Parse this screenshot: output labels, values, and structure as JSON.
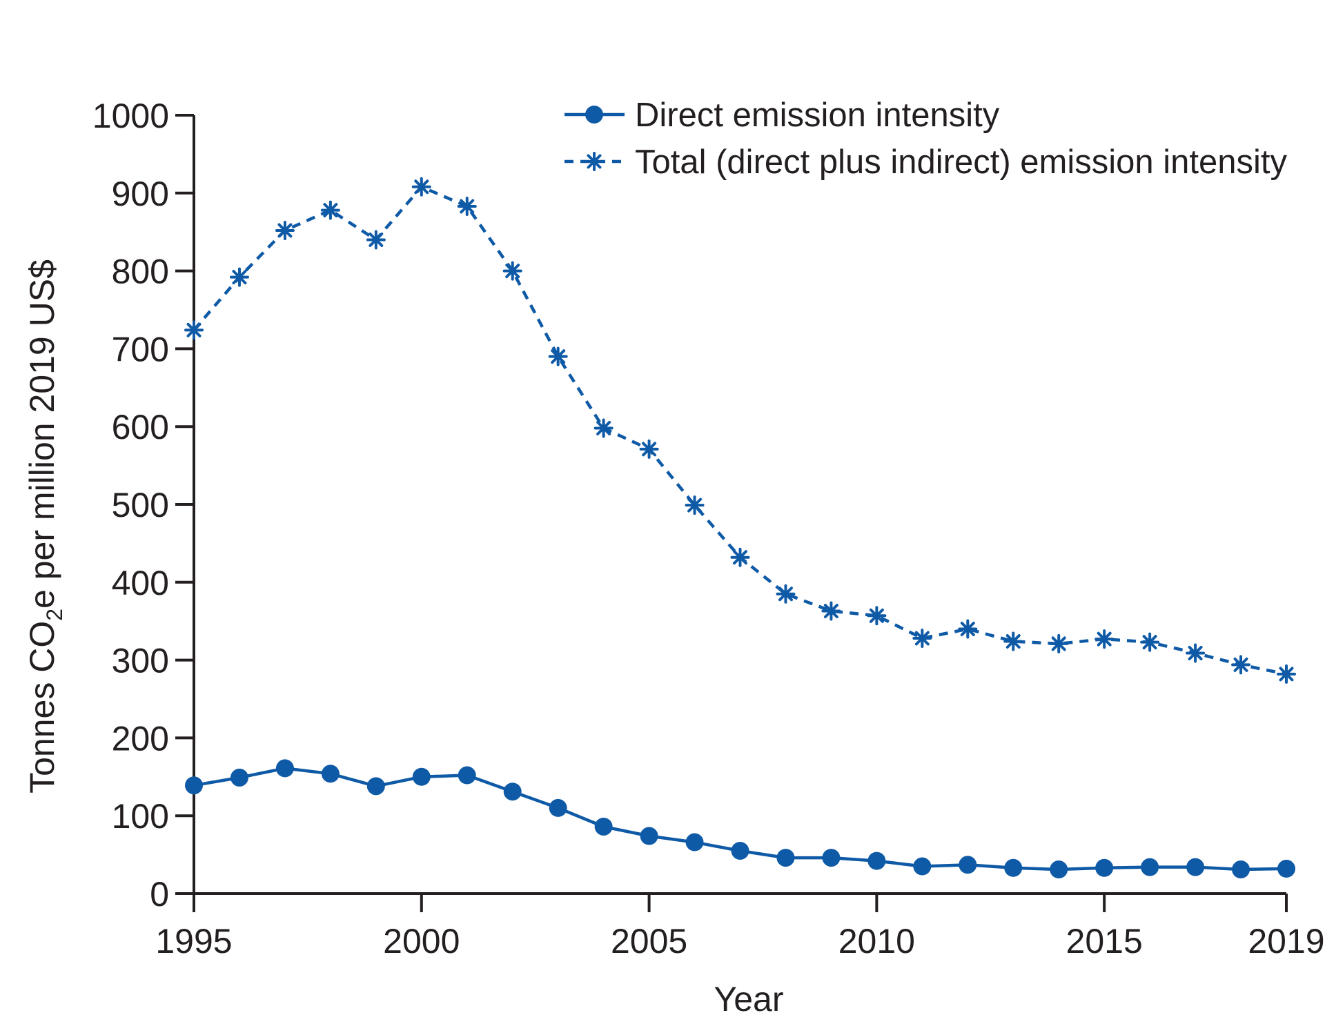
{
  "chart_data": {
    "type": "line",
    "title": "",
    "xlabel": "Year",
    "ylabel_parts": {
      "before": "Tonnes CO",
      "subscript": "2",
      "after": "e per million 2019 US$"
    },
    "xlim": [
      1995,
      2019
    ],
    "ylim": [
      0,
      1000
    ],
    "x_ticks": [
      1995,
      2000,
      2005,
      2010,
      2015,
      2019
    ],
    "y_ticks": [
      0,
      100,
      200,
      300,
      400,
      500,
      600,
      700,
      800,
      900,
      1000
    ],
    "grid": false,
    "legend_position": "top-right",
    "x": [
      1995,
      1996,
      1997,
      1998,
      1999,
      2000,
      2001,
      2002,
      2003,
      2004,
      2005,
      2006,
      2007,
      2008,
      2009,
      2010,
      2011,
      2012,
      2013,
      2014,
      2015,
      2016,
      2017,
      2018,
      2019
    ],
    "series": [
      {
        "name": "Direct emission intensity",
        "style": "solid",
        "marker": "circle",
        "color": "#0f5aa6",
        "values": [
          139,
          149,
          161,
          154,
          138,
          150,
          152,
          131,
          110,
          86,
          74,
          66,
          55,
          46,
          46,
          42,
          35,
          37,
          33,
          31,
          33,
          34,
          34,
          31,
          32
        ]
      },
      {
        "name": "Total (direct plus indirect) emission intensity",
        "style": "dashed",
        "marker": "asterisk",
        "color": "#0f5aa6",
        "values": [
          724,
          792,
          852,
          878,
          840,
          908,
          883,
          800,
          690,
          598,
          571,
          499,
          432,
          385,
          363,
          357,
          328,
          340,
          324,
          321,
          327,
          323,
          309,
          294,
          282
        ]
      }
    ]
  }
}
